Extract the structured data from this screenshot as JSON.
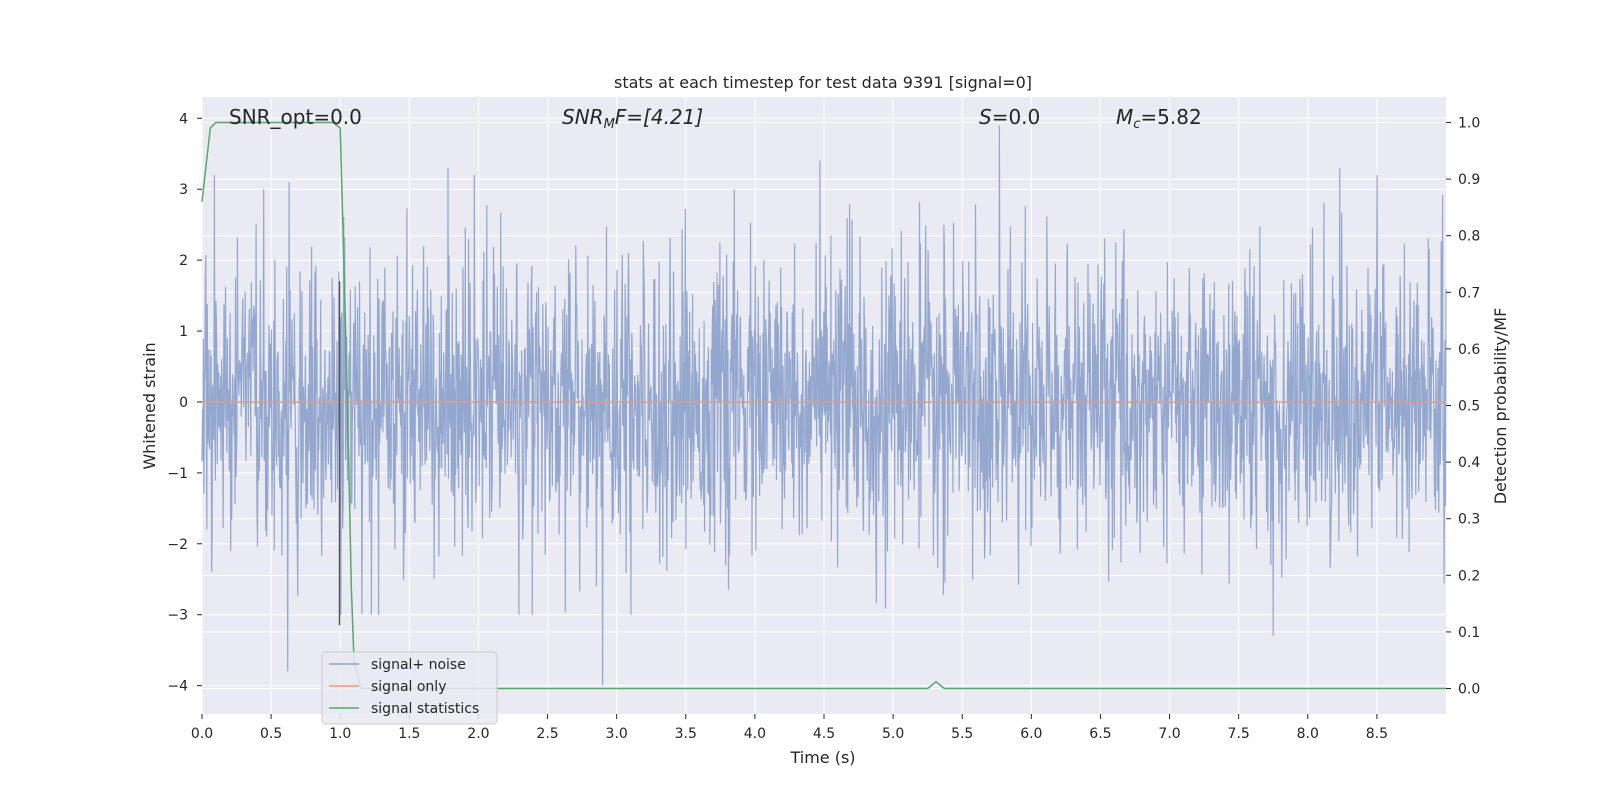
{
  "chart_data": {
    "type": "line",
    "title": "stats at each timestep for test data 9391 [signal=0]",
    "xlabel": "Time (s)",
    "ylabel_left": "Whitened strain",
    "ylabel_right": "Detection probability/MF",
    "xlim": [
      0.0,
      9.0
    ],
    "ylim_left": [
      -4.4,
      4.3
    ],
    "ylim_right": [
      -0.045,
      1.045
    ],
    "xticks": [
      "0.0",
      "0.5",
      "1.0",
      "1.5",
      "2.0",
      "2.5",
      "3.0",
      "3.5",
      "4.0",
      "4.5",
      "5.0",
      "5.5",
      "6.0",
      "6.5",
      "7.0",
      "7.5",
      "8.0",
      "8.5"
    ],
    "yticks_left": [
      "4",
      "3",
      "2",
      "1",
      "0",
      "−1",
      "−2",
      "−3",
      "−4"
    ],
    "yticks_right": [
      "1.0",
      "0.9",
      "0.8",
      "0.7",
      "0.6",
      "0.5",
      "0.4",
      "0.3",
      "0.2",
      "0.1",
      "0.0"
    ],
    "grid": true,
    "legend_position": "bottom-left",
    "series": [
      {
        "name": "signal+ noise",
        "color": "#8fa3cc",
        "description_of_values": "whitened noise, amplitude roughly within -4 to 4",
        "peaks": [
          {
            "x": 0.09,
            "y": 3.2
          },
          {
            "x": 0.63,
            "y": 3.1
          },
          {
            "x": 0.62,
            "y": -3.8
          },
          {
            "x": 1.78,
            "y": 3.3
          },
          {
            "x": 1.97,
            "y": 3.2
          },
          {
            "x": 2.9,
            "y": -4.0
          },
          {
            "x": 4.47,
            "y": 3.4
          },
          {
            "x": 5.77,
            "y": 3.9
          },
          {
            "x": 7.75,
            "y": -3.3
          },
          {
            "x": 8.23,
            "y": 3.3
          },
          {
            "x": 8.5,
            "y": 3.2
          }
        ]
      },
      {
        "name": "signal only",
        "color": "#e39c80",
        "values_constant": 0.0
      },
      {
        "name": "signal statistics",
        "color": "#55a868",
        "axis": "right",
        "x": [
          0.0,
          0.06,
          0.1,
          0.2,
          0.5,
          0.8,
          0.95,
          1.0,
          1.03,
          1.06,
          1.08,
          1.1,
          1.15,
          2.0,
          5.0,
          5.25,
          5.31,
          5.37,
          5.45,
          9.0
        ],
        "y": [
          0.86,
          0.99,
          1.0,
          1.0,
          1.0,
          1.0,
          1.0,
          0.99,
          0.72,
          0.42,
          0.18,
          0.05,
          0.0,
          0.0,
          0.0,
          0.0,
          0.012,
          0.0,
          0.0,
          0.0
        ]
      }
    ],
    "marker_line": {
      "x": 0.995,
      "color": "#555555"
    },
    "annotations": [
      {
        "id": "snr_opt",
        "text": "SNR_opt=0.0"
      },
      {
        "id": "snr_mf",
        "text": "SNR_MF=[4.21]"
      },
      {
        "id": "s_value",
        "text": "S=0.0"
      },
      {
        "id": "mc_value",
        "text": "M_c=5.82"
      }
    ]
  },
  "legend": {
    "items": [
      {
        "label": "signal+ noise",
        "color": "#8fa3cc"
      },
      {
        "label": "signal only",
        "color": "#e39c80"
      },
      {
        "label": "signal statistics",
        "color": "#55a868"
      }
    ]
  },
  "annotations_text": {
    "snr_opt": "SNR_opt=0.0",
    "snr_mf_main": "SNR",
    "snr_mf_sub": "M",
    "snr_mf_tail": "F=[4.21]",
    "s_main": "S",
    "s_tail": "=0.0",
    "mc_main": "M",
    "mc_sub": "c",
    "mc_tail": "=5.82"
  },
  "colors": {
    "plot_background": "#eaeaf2",
    "grid": "#ffffff",
    "noise": "#8fa3cc",
    "signal_only": "#e39c80",
    "statistics": "#55a868"
  }
}
